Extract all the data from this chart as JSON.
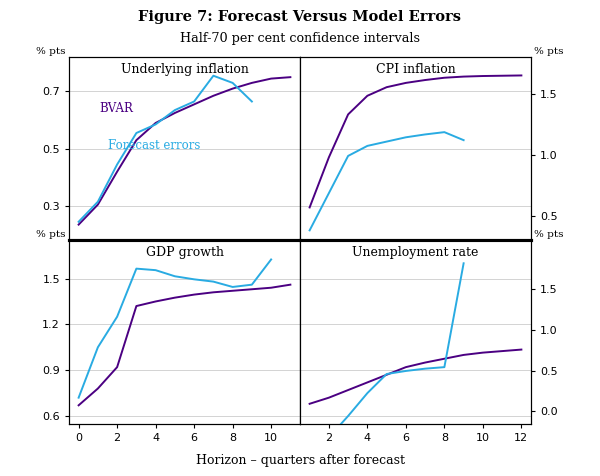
{
  "title": "Figure 7: Forecast Versus Model Errors",
  "subtitle": "Half-70 per cent confidence intervals",
  "xlabel": "Horizon – quarters after forecast",
  "bvar_color": "#4B0082",
  "forecast_color": "#29ABE2",
  "panels": [
    {
      "title": "Underlying inflation",
      "xlim": [
        -0.5,
        11.5
      ],
      "xticks": [
        0,
        2,
        4,
        6,
        8,
        10
      ],
      "ylim_left": [
        0.18,
        0.82
      ],
      "yticks_left": [
        0.3,
        0.5,
        0.7
      ],
      "ylim_right": [
        0.18,
        0.82
      ],
      "yticks_right": [
        0.3,
        0.5,
        0.7
      ],
      "show_left_yticks": true,
      "show_right_yticks": false,
      "show_xticklabels": false,
      "show_legend": true,
      "bvar_x": [
        0,
        1,
        2,
        3,
        4,
        5,
        6,
        7,
        8,
        9,
        10,
        11
      ],
      "bvar_y": [
        0.235,
        0.305,
        0.42,
        0.53,
        0.59,
        0.625,
        0.655,
        0.685,
        0.71,
        0.73,
        0.745,
        0.75
      ],
      "forecast_x": [
        0,
        1,
        2,
        3,
        4,
        5,
        6,
        7,
        8,
        9
      ],
      "forecast_y": [
        0.245,
        0.315,
        0.445,
        0.555,
        0.585,
        0.635,
        0.665,
        0.755,
        0.73,
        0.665
      ]
    },
    {
      "title": "CPI inflation",
      "xlim": [
        0.5,
        12.5
      ],
      "xticks": [
        2,
        4,
        6,
        8,
        10,
        12
      ],
      "ylim_left": [
        0.18,
        0.82
      ],
      "yticks_left": [
        0.3,
        0.5,
        0.7
      ],
      "ylim_right": [
        0.3,
        1.8
      ],
      "yticks_right": [
        0.5,
        1.0,
        1.5
      ],
      "show_left_yticks": false,
      "show_right_yticks": true,
      "show_xticklabels": false,
      "show_legend": false,
      "bvar_x": [
        1,
        2,
        3,
        4,
        5,
        6,
        7,
        8,
        9,
        10,
        11,
        12
      ],
      "bvar_y": [
        0.295,
        0.47,
        0.62,
        0.685,
        0.715,
        0.73,
        0.74,
        0.748,
        0.752,
        0.754,
        0.755,
        0.756
      ],
      "forecast_x": [
        1,
        2,
        3,
        4,
        5,
        6,
        7,
        8,
        9
      ],
      "forecast_y": [
        0.215,
        0.345,
        0.475,
        0.51,
        0.525,
        0.54,
        0.55,
        0.558,
        0.53
      ]
    },
    {
      "title": "GDP growth",
      "xlim": [
        -0.5,
        11.5
      ],
      "xticks": [
        0,
        2,
        4,
        6,
        8,
        10
      ],
      "ylim_left": [
        0.55,
        1.75
      ],
      "yticks_left": [
        0.6,
        0.9,
        1.2,
        1.5
      ],
      "ylim_right": [
        0.55,
        1.75
      ],
      "yticks_right": [
        0.6,
        0.9,
        1.2,
        1.5
      ],
      "show_left_yticks": true,
      "show_right_yticks": false,
      "show_xticklabels": true,
      "show_legend": false,
      "bvar_x": [
        0,
        1,
        2,
        3,
        4,
        5,
        6,
        7,
        8,
        9,
        10,
        11
      ],
      "bvar_y": [
        0.67,
        0.78,
        0.92,
        1.32,
        1.35,
        1.375,
        1.395,
        1.41,
        1.42,
        1.43,
        1.44,
        1.46
      ],
      "forecast_x": [
        0,
        1,
        2,
        3,
        4,
        5,
        6,
        7,
        8,
        9,
        10
      ],
      "forecast_y": [
        0.72,
        1.05,
        1.25,
        1.565,
        1.555,
        1.515,
        1.495,
        1.48,
        1.445,
        1.46,
        1.625
      ]
    },
    {
      "title": "Unemployment rate",
      "xlim": [
        0.5,
        12.5
      ],
      "xticks": [
        2,
        4,
        6,
        8,
        10,
        12
      ],
      "ylim_left": [
        0.55,
        1.75
      ],
      "yticks_left": [
        0.6,
        0.9,
        1.2,
        1.5
      ],
      "ylim_right": [
        -0.15,
        2.1
      ],
      "yticks_right": [
        0.0,
        0.5,
        1.0,
        1.5
      ],
      "show_left_yticks": false,
      "show_right_yticks": true,
      "show_xticklabels": true,
      "show_legend": false,
      "bvar_x": [
        1,
        2,
        3,
        4,
        5,
        6,
        7,
        8,
        9,
        10,
        11,
        12
      ],
      "bvar_y": [
        0.68,
        0.72,
        0.77,
        0.82,
        0.87,
        0.92,
        0.95,
        0.975,
        1.0,
        1.015,
        1.025,
        1.035
      ],
      "forecast_x": [
        1,
        2,
        3,
        4,
        5,
        6,
        7,
        8,
        9
      ],
      "forecast_y": [
        0.32,
        0.46,
        0.6,
        0.75,
        0.875,
        0.895,
        0.91,
        0.92,
        1.6
      ]
    }
  ]
}
